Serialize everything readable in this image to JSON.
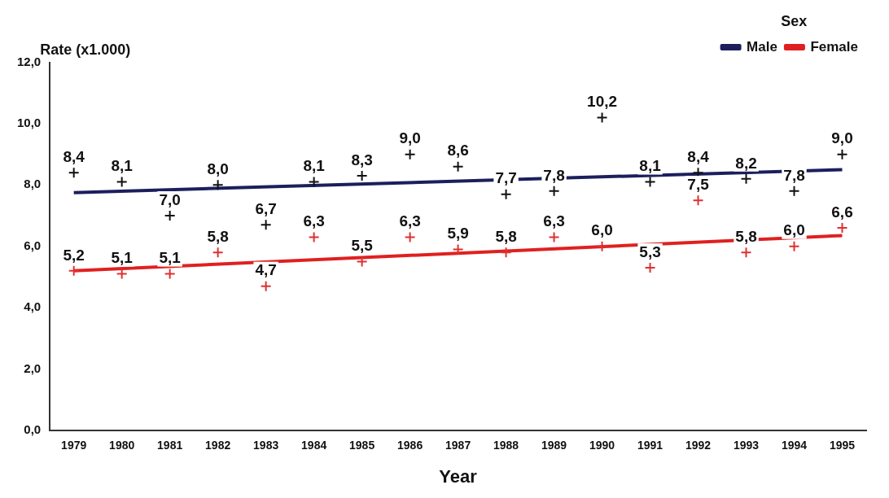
{
  "chart_data": {
    "type": "scatter",
    "xlabel": "Year",
    "ylabel": "Rate (x1.000)",
    "legend_title": "Sex",
    "legend": "top right",
    "grid": false,
    "categories": [
      "1979",
      "1980",
      "1981",
      "1982",
      "1983",
      "1984",
      "1985",
      "1986",
      "1987",
      "1988",
      "1989",
      "1990",
      "1991",
      "1992",
      "1993",
      "1994",
      "1995"
    ],
    "ylim": [
      0,
      12
    ],
    "yticks": [
      {
        "value": 0,
        "label": "0,0"
      },
      {
        "value": 2,
        "label": "2,0"
      },
      {
        "value": 4,
        "label": "4,0"
      },
      {
        "value": 6,
        "label": "6,0"
      },
      {
        "value": 8,
        "label": "8,0"
      },
      {
        "value": 10,
        "label": "10,0"
      },
      {
        "value": 12,
        "label": "12,0"
      }
    ],
    "series": [
      {
        "color": "#111111",
        "marker": "cross",
        "values": [
          8.4,
          8.1,
          7.0,
          8.0,
          6.7,
          8.1,
          8.3,
          9.0,
          8.6,
          7.7,
          7.8,
          10.2,
          8.1,
          8.4,
          8.2,
          7.8,
          9.0
        ],
        "value_labels": [
          "8,4",
          "8,1",
          "7,0",
          "8,0",
          "6,7",
          "8,1",
          "8,3",
          "9,0",
          "8,6",
          "7,7",
          "7,8",
          "10,2",
          "8,1",
          "8,4",
          "8,2",
          "7,8",
          "9,0"
        ]
      },
      {
        "color": "#e03030",
        "marker": "cross",
        "values": [
          5.2,
          5.1,
          5.1,
          5.8,
          4.7,
          6.3,
          5.5,
          6.3,
          5.9,
          5.8,
          6.3,
          6.0,
          5.3,
          7.5,
          5.8,
          6.0,
          6.6
        ],
        "value_labels": [
          "5,2",
          "5,1",
          "5,1",
          "5,8",
          "4,7",
          "6,3",
          "5,5",
          "6,3",
          "5,9",
          "5,8",
          "6,3",
          "6,0",
          "5,3",
          "7,5",
          "5,8",
          "6,0",
          "6,6"
        ]
      },
      {
        "type": "line",
        "name": "Male",
        "color": "#1c1f5c",
        "marker": "none",
        "values": [
          7.75,
          null,
          null,
          null,
          null,
          null,
          null,
          null,
          null,
          null,
          null,
          null,
          null,
          null,
          null,
          null,
          8.5
        ]
      },
      {
        "type": "line",
        "name": "Female",
        "color": "#e02020",
        "marker": "none",
        "values": [
          5.2,
          null,
          null,
          null,
          null,
          null,
          null,
          null,
          null,
          null,
          null,
          null,
          null,
          null,
          null,
          null,
          6.35
        ]
      }
    ]
  }
}
